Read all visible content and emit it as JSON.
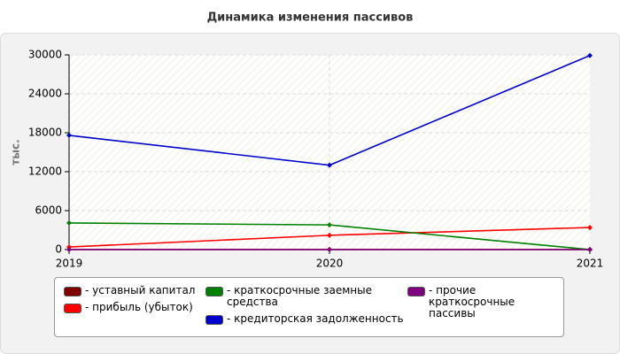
{
  "chart_data": {
    "type": "line",
    "title": "Динамика изменения пассивов",
    "y_label": "тыс.",
    "x": [
      2019,
      2020,
      2021
    ],
    "xlim": [
      2019,
      2021
    ],
    "xticks": [
      2019,
      2020,
      2021
    ],
    "ylim": [
      0,
      30000
    ],
    "yticks": [
      0,
      6000,
      12000,
      18000,
      24000,
      30000
    ],
    "grid": true,
    "series": [
      {
        "name": "уставный капитал",
        "color": "#800000",
        "values": [
          10,
          10,
          10
        ]
      },
      {
        "name": "прибыль (убыток)",
        "color": "#ff0000",
        "values": [
          400,
          2200,
          3400
        ]
      },
      {
        "name": "краткосрочные заемные средства",
        "color": "#008000",
        "values": [
          4100,
          3800,
          0
        ]
      },
      {
        "name": "кредиторская задолженность",
        "color": "#0000cc",
        "values": [
          17600,
          13000,
          29900
        ]
      },
      {
        "name": "прочие краткосрочные пассивы",
        "color": "#800080",
        "values": [
          0,
          0,
          0
        ]
      }
    ]
  }
}
